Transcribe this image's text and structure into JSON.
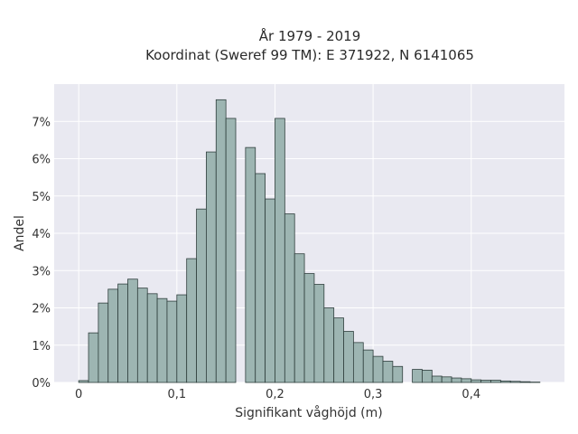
{
  "chart_data": {
    "type": "bar",
    "title_line1": "År 1979 - 2019",
    "title_line2": "Koordinat (Sweref 99 TM): E 371922, N 6141065",
    "xlabel": "Signifikant våghöjd (m)",
    "ylabel": "Andel",
    "xlim": [
      -0.025,
      0.495
    ],
    "ylim": [
      0,
      8.0
    ],
    "bin_width": 0.01,
    "xticks": [
      0,
      0.1,
      0.2,
      0.3,
      0.4
    ],
    "xtick_labels": [
      "0",
      "0,1",
      "0,2",
      "0,3",
      "0,4"
    ],
    "yticks": [
      0,
      1,
      2,
      3,
      4,
      5,
      6,
      7
    ],
    "ytick_labels": [
      "0%",
      "1%",
      "2%",
      "3%",
      "4%",
      "5%",
      "6%",
      "7%"
    ],
    "bin_starts": [
      0.0,
      0.01,
      0.02,
      0.03,
      0.04,
      0.05,
      0.06,
      0.07,
      0.08,
      0.09,
      0.1,
      0.11,
      0.12,
      0.13,
      0.14,
      0.15,
      0.16,
      0.17,
      0.18,
      0.19,
      0.2,
      0.21,
      0.22,
      0.23,
      0.24,
      0.25,
      0.26,
      0.27,
      0.28,
      0.29,
      0.3,
      0.31,
      0.32,
      0.33,
      0.34,
      0.35,
      0.36,
      0.37,
      0.38,
      0.39,
      0.4,
      0.41,
      0.42,
      0.43,
      0.44,
      0.45,
      0.46
    ],
    "values": [
      0.05,
      1.33,
      2.13,
      2.5,
      2.64,
      2.77,
      2.53,
      2.38,
      2.25,
      2.18,
      2.35,
      3.32,
      4.65,
      6.18,
      7.58,
      7.08,
      0.0,
      6.3,
      5.6,
      4.92,
      7.08,
      4.52,
      3.45,
      2.92,
      2.63,
      2.0,
      1.73,
      1.37,
      1.07,
      0.87,
      0.7,
      0.57,
      0.43,
      0.0,
      0.35,
      0.33,
      0.17,
      0.15,
      0.12,
      0.1,
      0.07,
      0.06,
      0.06,
      0.04,
      0.03,
      0.02,
      0.01
    ]
  }
}
